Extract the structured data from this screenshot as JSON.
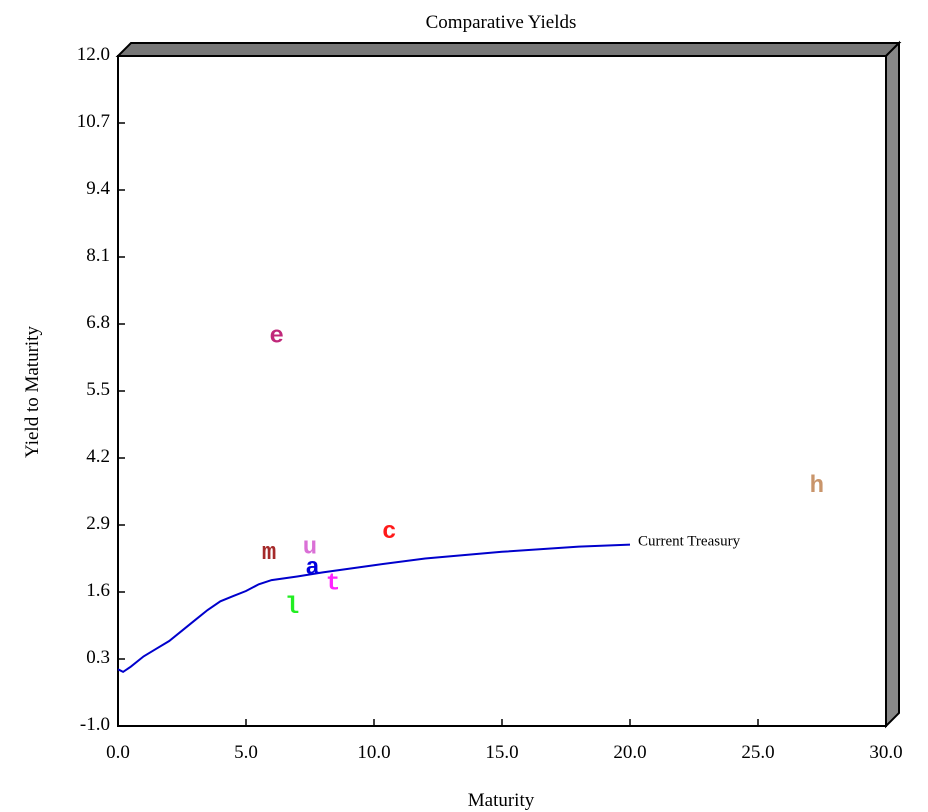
{
  "chart_data": {
    "type": "scatter",
    "title": "Comparative Yields",
    "xlabel": "Maturity",
    "ylabel": "Yield to Maturity",
    "xlim": [
      0,
      30
    ],
    "ylim": [
      -1.0,
      12.0
    ],
    "x_ticks": [
      "0.0",
      "5.0",
      "10.0",
      "15.0",
      "20.0",
      "25.0",
      "30.0"
    ],
    "y_ticks": [
      "-1.0",
      "0.3",
      "1.6",
      "2.9",
      "4.2",
      "5.5",
      "6.8",
      "8.1",
      "9.4",
      "10.7",
      "12.0"
    ],
    "grid": false,
    "frame_colors": {
      "top": "#777777",
      "right": "#888888",
      "plot_border": "#000000"
    },
    "points": [
      {
        "label": "e",
        "x": 6.2,
        "y": 6.6,
        "color": "#c0287a"
      },
      {
        "label": "h",
        "x": 27.3,
        "y": 3.7,
        "color": "#c9956b"
      },
      {
        "label": "c",
        "x": 10.6,
        "y": 2.8,
        "color": "#ff1a1a"
      },
      {
        "label": "m",
        "x": 5.9,
        "y": 2.4,
        "color": "#a52a2a"
      },
      {
        "label": "u",
        "x": 7.5,
        "y": 2.5,
        "color": "#da70d6"
      },
      {
        "label": "a",
        "x": 7.6,
        "y": 2.1,
        "color": "#0000dd"
      },
      {
        "label": "t",
        "x": 8.4,
        "y": 1.8,
        "color": "#ff22ff"
      },
      {
        "label": "l",
        "x": 6.8,
        "y": 1.35,
        "color": "#22ee22"
      }
    ],
    "series": [
      {
        "name": "Current Treasury",
        "color": "#0000cc",
        "x": [
          0,
          0.2,
          0.5,
          1,
          1.5,
          2,
          2.5,
          3,
          3.5,
          4,
          4.5,
          5,
          5.5,
          6,
          7,
          8,
          10,
          12,
          15,
          18,
          20
        ],
        "y": [
          0.1,
          0.05,
          0.15,
          0.35,
          0.5,
          0.65,
          0.85,
          1.05,
          1.25,
          1.42,
          1.52,
          1.62,
          1.75,
          1.83,
          1.9,
          1.98,
          2.12,
          2.25,
          2.38,
          2.48,
          2.52
        ]
      }
    ]
  }
}
